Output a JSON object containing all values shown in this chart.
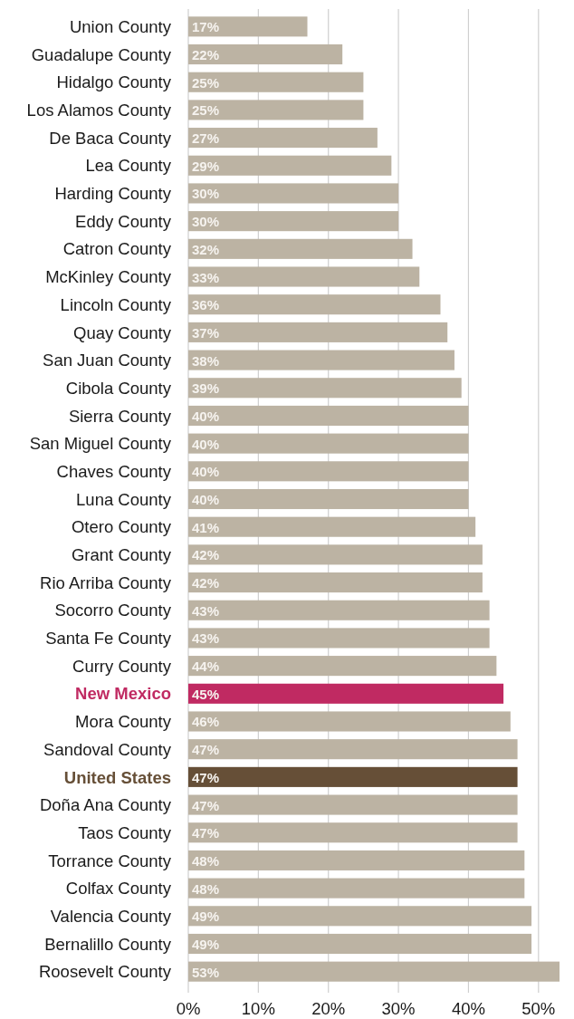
{
  "chart_data": {
    "type": "bar",
    "orientation": "horizontal",
    "categories": [
      "Union County",
      "Guadalupe County",
      "Hidalgo County",
      "Los Alamos County",
      "De Baca County",
      "Lea County",
      "Harding County",
      "Eddy County",
      "Catron County",
      "McKinley County",
      "Lincoln County",
      "Quay County",
      "San Juan County",
      "Cibola County",
      "Sierra County",
      "San Miguel County",
      "Chaves County",
      "Luna County",
      "Otero County",
      "Grant County",
      "Rio Arriba County",
      "Socorro County",
      "Santa Fe County",
      "Curry County",
      "New Mexico",
      "Mora County",
      "Sandoval County",
      "United States",
      "Doña Ana County",
      "Taos County",
      "Torrance County",
      "Colfax County",
      "Valencia County",
      "Bernalillo County",
      "Roosevelt County"
    ],
    "values": [
      17,
      22,
      25,
      25,
      27,
      29,
      30,
      30,
      32,
      33,
      36,
      37,
      38,
      39,
      40,
      40,
      40,
      40,
      41,
      42,
      42,
      43,
      43,
      44,
      45,
      46,
      47,
      47,
      47,
      47,
      48,
      48,
      49,
      49,
      53
    ],
    "color": "#bcb3a3",
    "colors": [
      "#bcb3a3",
      "#bcb3a3",
      "#bcb3a3",
      "#bcb3a3",
      "#bcb3a3",
      "#bcb3a3",
      "#bcb3a3",
      "#bcb3a3",
      "#bcb3a3",
      "#bcb3a3",
      "#bcb3a3",
      "#bcb3a3",
      "#bcb3a3",
      "#bcb3a3",
      "#bcb3a3",
      "#bcb3a3",
      "#bcb3a3",
      "#bcb3a3",
      "#bcb3a3",
      "#bcb3a3",
      "#bcb3a3",
      "#bcb3a3",
      "#bcb3a3",
      "#bcb3a3",
      "#c02a62",
      "#bcb3a3",
      "#bcb3a3",
      "#664f37",
      "#bcb3a3",
      "#bcb3a3",
      "#bcb3a3",
      "#bcb3a3",
      "#bcb3a3",
      "#bcb3a3",
      "#bcb3a3"
    ],
    "value_labels": [
      "17%",
      "22%",
      "25%",
      "25%",
      "27%",
      "29%",
      "30%",
      "30%",
      "32%",
      "33%",
      "36%",
      "37%",
      "38%",
      "39%",
      "40%",
      "40%",
      "40%",
      "40%",
      "41%",
      "42%",
      "42%",
      "43%",
      "43%",
      "44%",
      "45%",
      "46%",
      "47%",
      "47%",
      "47%",
      "47%",
      "48%",
      "48%",
      "49%",
      "49%",
      "53%"
    ],
    "xlim": [
      0,
      53
    ],
    "xticks": [
      {
        "value": 0,
        "label": "0%"
      },
      {
        "value": 10,
        "label": "10%"
      },
      {
        "value": 20,
        "label": "20%"
      },
      {
        "value": 30,
        "label": "30%"
      },
      {
        "value": 40,
        "label": "40%"
      },
      {
        "value": 50,
        "label": "50%"
      }
    ],
    "grid": "x"
  }
}
